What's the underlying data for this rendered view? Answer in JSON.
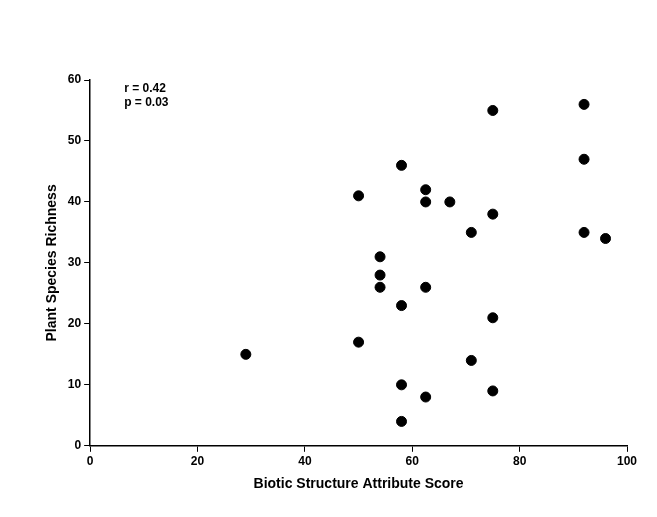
{
  "chart_data": {
    "type": "scatter",
    "x_label": "Biotic Structure Attribute Score",
    "y_label": "Plant Species Richness",
    "annotations": [
      "r = 0.42",
      "p = 0.03"
    ],
    "x": [
      29,
      50,
      50,
      54,
      54,
      54,
      58,
      58,
      58,
      58,
      62.5,
      62.5,
      62.5,
      62.5,
      67,
      71,
      71,
      75,
      75,
      75,
      75,
      92,
      92,
      92,
      96
    ],
    "values": [
      15,
      41,
      17,
      31,
      28,
      26,
      46,
      23,
      10,
      4,
      42,
      40,
      26,
      8,
      40,
      35,
      14,
      55,
      38,
      21,
      9,
      56,
      47,
      35,
      34
    ],
    "color": "#000000",
    "marker": "circle",
    "xlim": [
      0,
      100
    ],
    "xticks": [
      0,
      20,
      40,
      60,
      80,
      100
    ],
    "ylim": [
      0,
      60
    ],
    "yticks": [
      0,
      10,
      20,
      30,
      40,
      50,
      60
    ],
    "grid": false
  }
}
